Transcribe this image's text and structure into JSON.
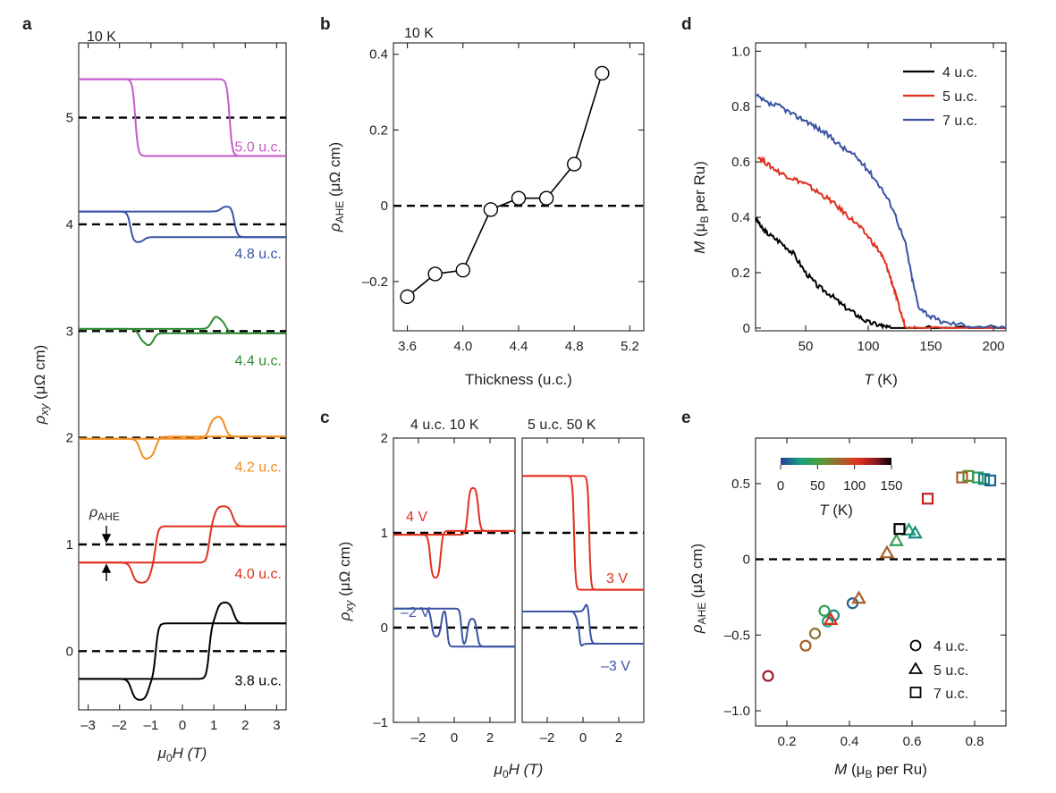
{
  "colors": {
    "black": "#000000",
    "red": "#e0301e",
    "blue": "#3a52a4",
    "green": "#2f8a34",
    "orange": "#f28a1e",
    "magenta": "#c45ac8",
    "navy": "#40439a",
    "cmap": [
      "#2b3a98",
      "#14a07f",
      "#4c9e3c",
      "#9a6a2b",
      "#e0301e",
      "#8a1a22",
      "#000000"
    ]
  },
  "panel_labels": [
    "a",
    "b",
    "c",
    "d",
    "e"
  ],
  "panel_a": {
    "condition": "10 K",
    "ylabel_main": "ρ",
    "ylabel_sub": "xy",
    "ylabel_unit": " (μΩ cm)",
    "xlabel_main": "μ",
    "xlabel_sub": "0",
    "xlabel_rest": "H (T)",
    "rho_ahe_main": "ρ",
    "rho_ahe_sub": "AHE",
    "xticks": [
      -3,
      -2,
      -1,
      0,
      1,
      2,
      3
    ],
    "yticks": [
      0,
      1,
      2,
      3,
      4,
      5
    ]
  },
  "panel_b": {
    "condition": "10 K",
    "ylabel_main": "ρ",
    "ylabel_sub": "AHE",
    "ylabel_unit": " (μΩ cm)",
    "xlabel": "Thickness (u.c.)",
    "xticks": [
      "3.6",
      "4.0",
      "4.4",
      "4.8",
      "5.2"
    ],
    "yticks": [
      "–0.2",
      "0",
      "0.2",
      "0.4"
    ]
  },
  "panel_c": {
    "left_condition": "4 u.c. 10 K",
    "right_condition": "5 u.c. 50 K",
    "ylabel_main": "ρ",
    "ylabel_sub": "xy",
    "ylabel_unit": " (μΩ cm)",
    "xlabel_main": "μ",
    "xlabel_sub": "0",
    "xlabel_rest": "H (T)",
    "xticks": [
      "–2",
      "0",
      "2"
    ],
    "yticks": [
      "–1",
      "0",
      "1",
      "2"
    ],
    "gate_labels": [
      "4 V",
      "–2 V",
      "3 V",
      "–3 V"
    ]
  },
  "panel_d": {
    "ylabel_main": "M",
    "ylabel_paren": " (μ",
    "ylabel_sub": "B",
    "ylabel_rest": " per Ru)",
    "xlabel_main": "T",
    "xlabel_rest": " (K)",
    "xticks": [
      "50",
      "100",
      "150",
      "200"
    ],
    "yticks": [
      "0",
      "0.2",
      "0.4",
      "0.6",
      "0.8",
      "1.0"
    ],
    "legend": [
      "4 u.c.",
      "5 u.c.",
      "7 u.c."
    ]
  },
  "panel_e": {
    "ylabel_main": "ρ",
    "ylabel_sub": "AHE",
    "ylabel_unit": " (μΩ cm)",
    "xlabel_main": "M",
    "xlabel_paren": " (μ",
    "xlabel_sub": "B",
    "xlabel_rest": " per Ru)",
    "xticks": [
      "0.2",
      "0.4",
      "0.6",
      "0.8"
    ],
    "yticks": [
      "–1.0",
      "–0.5",
      "0",
      "0.5"
    ],
    "legend": [
      "4 u.c.",
      "5 u.c.",
      "7 u.c."
    ],
    "colorbar_ticks": [
      "0",
      "50",
      "100",
      "150"
    ],
    "colorbar_label_main": "T",
    "colorbar_label_rest": " (K)"
  },
  "chart_data": [
    {
      "panel": "a",
      "type": "line",
      "xlim": [
        -3.3,
        3.3
      ],
      "ylim": [
        -0.55,
        5.7
      ],
      "series": [
        {
          "name": "3.8 u.c.",
          "color": "#000000",
          "offset": 0,
          "pAHE": -0.26,
          "hc": 0.85,
          "spikeH": 1.35,
          "spikeW": 0.55,
          "spikeA": 0.2
        },
        {
          "name": "4.0 u.c.",
          "color": "#e0301e",
          "offset": 1,
          "pAHE": -0.17,
          "hc": 0.85,
          "spikeH": 1.3,
          "spikeW": 0.6,
          "spikeA": 0.19
        },
        {
          "name": "4.2 u.c.",
          "color": "#f28a1e",
          "offset": 2,
          "pAHE": -0.01,
          "hc": 1.1,
          "spikeH": 1.1,
          "spikeW": 0.5,
          "spikeA": 0.2
        },
        {
          "name": "4.4 u.c.",
          "color": "#2f8a34",
          "offset": 3,
          "pAHE": 0.02,
          "hc": 1.15,
          "spikeH": 1.15,
          "spikeW": 0.45,
          "spikeA": 0.13
        },
        {
          "name": "4.8 u.c.",
          "color": "#3a52a4",
          "offset": 4,
          "pAHE": 0.12,
          "hc": 1.65,
          "spikeH": 1.45,
          "spikeW": 0.45,
          "spikeA": 0.05
        },
        {
          "name": "5.0 u.c.",
          "color": "#c45ac8",
          "offset": 5,
          "pAHE": 0.36,
          "hc": 1.5,
          "spikeH": 1.4,
          "spikeW": 0.4,
          "spikeA": 0.0
        }
      ]
    },
    {
      "panel": "b",
      "type": "line",
      "xlim": [
        3.5,
        5.3
      ],
      "ylim": [
        -0.33,
        0.43
      ],
      "x": [
        3.6,
        3.8,
        4.0,
        4.2,
        4.4,
        4.6,
        4.8,
        5.0
      ],
      "y": [
        -0.24,
        -0.18,
        -0.17,
        -0.01,
        0.02,
        0.02,
        0.11,
        0.35
      ]
    },
    {
      "panel": "c",
      "type": "line",
      "subplots": [
        {
          "xlim": [
            -3.4,
            3.4
          ],
          "ylim": [
            -1,
            2
          ],
          "series": [
            {
              "name": "4 V",
              "color": "#e0301e",
              "offset": 1,
              "pAHE": -0.02,
              "hc": 0.8,
              "spikeH": 1.05,
              "spikeW": 0.6,
              "spikeA": 0.46
            },
            {
              "name": "–2 V",
              "color": "#3a52a4",
              "offset": 0,
              "pAHE": 0.2,
              "hc": 0.4,
              "spikeH": 1.0,
              "spikeW": 0.55,
              "spikeA": 0.3
            }
          ]
        },
        {
          "xlim": [
            -3.4,
            3.4
          ],
          "ylim": [
            -1,
            2
          ],
          "series": [
            {
              "name": "3 V",
              "color": "#e0301e",
              "offset": 1,
              "pAHE": 0.6,
              "hc": 0.0,
              "hcL": -0.5,
              "hcR": 0.35,
              "spikeH": 0,
              "spikeW": 0.3,
              "spikeA": 0
            },
            {
              "name": "–3 V",
              "color": "#3a52a4",
              "offset": 0,
              "pAHE": 0.17,
              "hc": 0.0,
              "hcL": -0.2,
              "hcR": 0.35,
              "spikeH": 0.25,
              "spikeW": 0.3,
              "spikeA": 0.1
            }
          ]
        }
      ]
    },
    {
      "panel": "d",
      "type": "line",
      "xlim": [
        10,
        210
      ],
      "ylim": [
        -0.01,
        1.03
      ],
      "series": [
        {
          "name": "4 u.c.",
          "color": "#000000",
          "x": [
            10,
            15,
            20,
            30,
            40,
            50,
            60,
            70,
            80,
            90,
            100,
            110,
            115,
            125,
            135,
            150,
            210
          ],
          "y": [
            0.4,
            0.36,
            0.34,
            0.31,
            0.27,
            0.2,
            0.15,
            0.12,
            0.08,
            0.05,
            0.02,
            0.01,
            0.0,
            0.0,
            0.0,
            0.0,
            0.0
          ]
        },
        {
          "name": "5 u.c.",
          "color": "#e0301e",
          "x": [
            12,
            20,
            30,
            40,
            50,
            60,
            70,
            80,
            90,
            100,
            110,
            115,
            120,
            125,
            130,
            140,
            210
          ],
          "y": [
            0.62,
            0.59,
            0.56,
            0.54,
            0.52,
            0.49,
            0.46,
            0.42,
            0.38,
            0.33,
            0.27,
            0.22,
            0.15,
            0.07,
            0.0,
            0.0,
            0.0
          ]
        },
        {
          "name": "7 u.c.",
          "color": "#3a52a4",
          "x": [
            10,
            20,
            30,
            40,
            50,
            60,
            70,
            80,
            90,
            100,
            110,
            120,
            130,
            135,
            140,
            150,
            160,
            180,
            210
          ],
          "y": [
            0.84,
            0.81,
            0.8,
            0.77,
            0.75,
            0.72,
            0.69,
            0.65,
            0.62,
            0.57,
            0.51,
            0.43,
            0.3,
            0.18,
            0.08,
            0.04,
            0.02,
            0.01,
            0.0
          ]
        }
      ]
    },
    {
      "panel": "e",
      "type": "scatter",
      "xlim": [
        0.1,
        0.9
      ],
      "ylim": [
        -1.1,
        0.8
      ],
      "series": [
        {
          "name": "4 u.c.",
          "marker": "circle",
          "points": [
            [
              0.14,
              -0.77,
              120
            ],
            [
              0.26,
              -0.57,
              80
            ],
            [
              0.29,
              -0.49,
              70
            ],
            [
              0.32,
              -0.34,
              40
            ],
            [
              0.33,
              -0.41,
              30
            ],
            [
              0.35,
              -0.37,
              20
            ],
            [
              0.41,
              -0.29,
              10
            ]
          ]
        },
        {
          "name": "5 u.c.",
          "marker": "triangle",
          "points": [
            [
              0.34,
              -0.4,
              100
            ],
            [
              0.43,
              -0.26,
              80
            ],
            [
              0.52,
              0.04,
              80
            ],
            [
              0.55,
              0.12,
              40
            ],
            [
              0.59,
              0.19,
              30
            ],
            [
              0.61,
              0.17,
              20
            ]
          ]
        },
        {
          "name": "7 u.c.",
          "marker": "square",
          "points": [
            [
              0.56,
              0.2,
              150
            ],
            [
              0.65,
              0.4,
              110
            ],
            [
              0.76,
              0.54,
              80
            ],
            [
              0.78,
              0.55,
              60
            ],
            [
              0.81,
              0.54,
              40
            ],
            [
              0.83,
              0.53,
              20
            ],
            [
              0.85,
              0.52,
              10
            ]
          ]
        }
      ]
    }
  ]
}
